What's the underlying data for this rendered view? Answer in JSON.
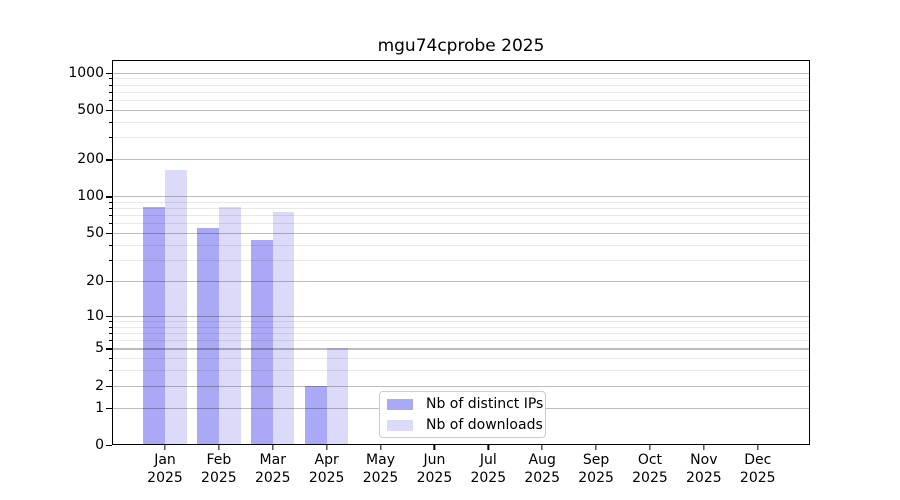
{
  "title": "mgu74cprobe 2025",
  "chart_data": {
    "type": "bar",
    "title": "mgu74cprobe 2025",
    "x_categories": [
      "Jan",
      "Feb",
      "Mar",
      "Apr",
      "May",
      "Jun",
      "Jul",
      "Aug",
      "Sep",
      "Oct",
      "Nov",
      "Dec"
    ],
    "x_year_label": "2025",
    "series": [
      {
        "name": "Nb of distinct IPs",
        "color": "#a9a9f6",
        "values": [
          82,
          55,
          44,
          2,
          0,
          0,
          0,
          0,
          0,
          0,
          0,
          0
        ]
      },
      {
        "name": "Nb of downloads",
        "color": "#dbdbf9",
        "values": [
          165,
          82,
          74,
          5,
          0,
          0,
          0,
          0,
          0,
          0,
          0,
          0
        ]
      }
    ],
    "y_axis": {
      "scale": "log10(1+x)",
      "major_ticks": [
        0,
        1,
        2,
        5,
        10,
        20,
        50,
        100,
        200,
        500,
        1000
      ],
      "minor_ticks": [
        3,
        4,
        6,
        7,
        8,
        9,
        30,
        40,
        60,
        70,
        80,
        90,
        300,
        400,
        600,
        700,
        800,
        900
      ],
      "range": [
        0,
        1000
      ]
    },
    "grid": "horizontal major and minor, drawn over bars",
    "legend_position": "lower center"
  }
}
